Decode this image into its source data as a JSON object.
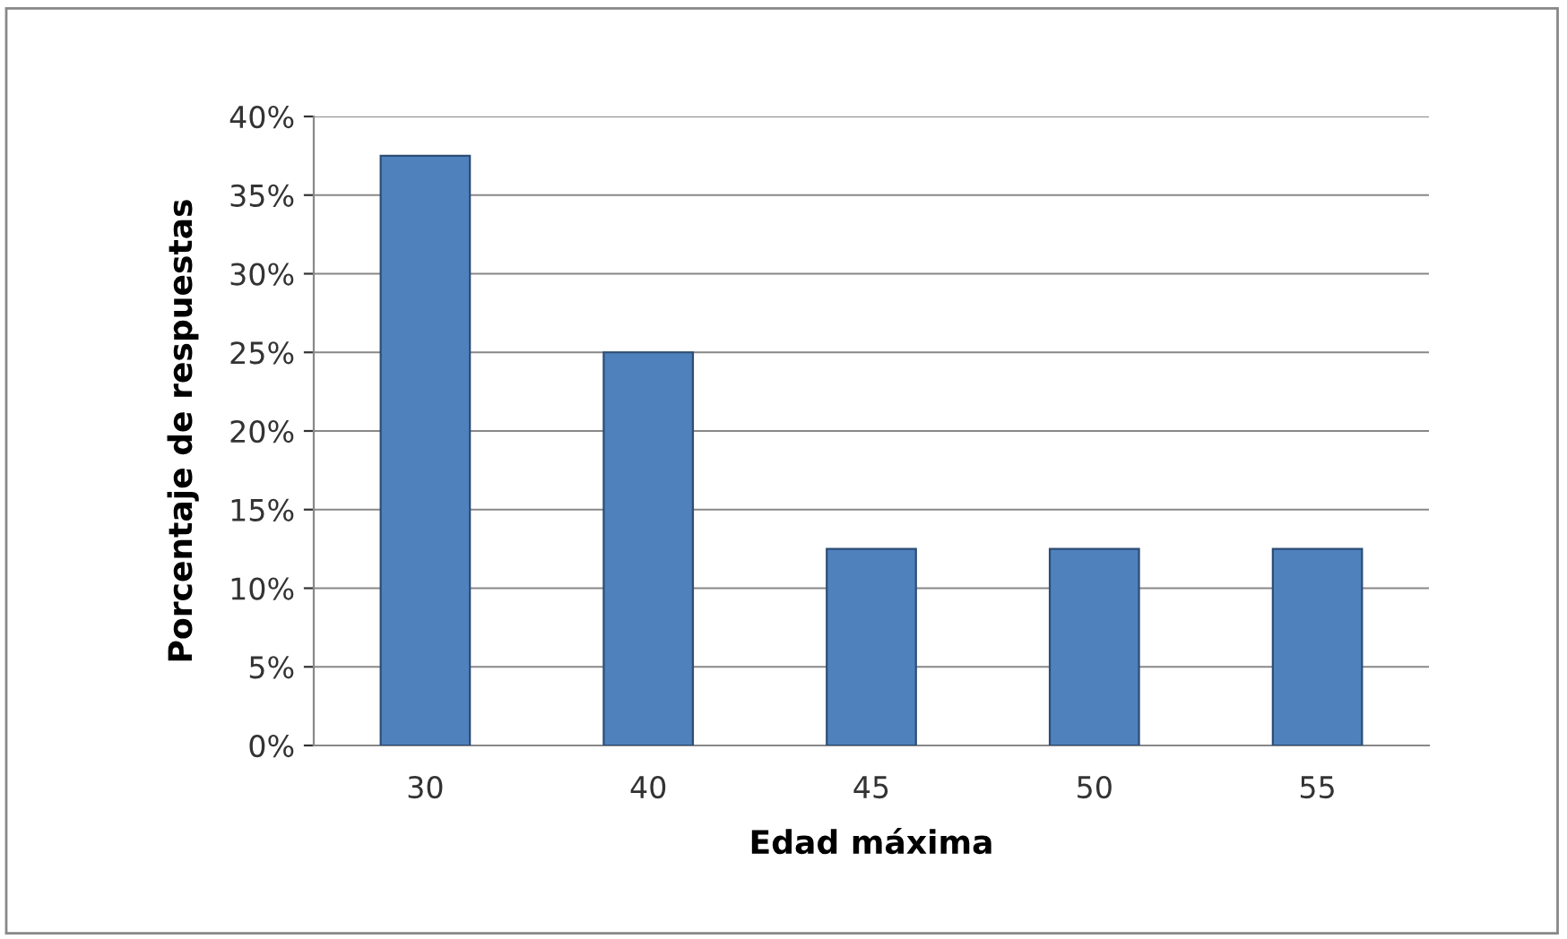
{
  "chart_data": {
    "type": "bar",
    "xlabel": "Edad máxima",
    "ylabel": "Porcentaje de respuestas",
    "categories": [
      "30",
      "40",
      "45",
      "50",
      "55"
    ],
    "values": [
      37.5,
      25,
      12.5,
      12.5,
      12.5
    ],
    "color": "#4f81bd",
    "ylim": [
      0,
      40
    ],
    "yticks": [
      {
        "value": 0,
        "label": "0%"
      },
      {
        "value": 5,
        "label": "5%"
      },
      {
        "value": 10,
        "label": "10%"
      },
      {
        "value": 15,
        "label": "15%"
      },
      {
        "value": 20,
        "label": "20%"
      },
      {
        "value": 25,
        "label": "25%"
      },
      {
        "value": 30,
        "label": "30%"
      },
      {
        "value": 35,
        "label": "35%"
      },
      {
        "value": 40,
        "label": "40%"
      }
    ],
    "grid": "y",
    "legend": false
  }
}
